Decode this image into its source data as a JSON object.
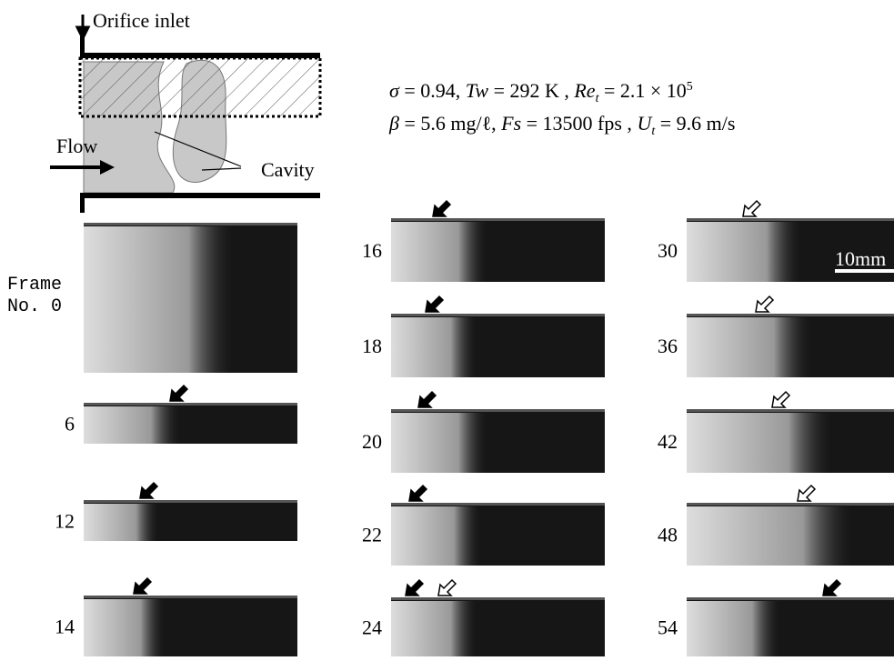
{
  "diagram": {
    "inlet_label": "Orifice inlet",
    "flow_label": "Flow",
    "cavity_label": "Cavity"
  },
  "parameters": [
    [
      {
        "text": "σ",
        "style": "italic"
      },
      {
        "text": " = 0.94,  ",
        "style": "plain"
      },
      {
        "text": "Tw",
        "style": "italic"
      },
      {
        "text": " = 292 K ,  ",
        "style": "plain"
      },
      {
        "text": "Re",
        "style": "italic"
      },
      {
        "text": "t",
        "style": "sub"
      },
      {
        "text": " = 2.1 × 10",
        "style": "plain"
      },
      {
        "text": "5",
        "style": "sup"
      }
    ],
    [
      {
        "text": "β",
        "style": "italic"
      },
      {
        "text": " = 5.6 mg/ℓ,  ",
        "style": "plain"
      },
      {
        "text": "Fs",
        "style": "italic"
      },
      {
        "text": " = 13500 fps ,  ",
        "style": "plain"
      },
      {
        "text": "U",
        "style": "italic"
      },
      {
        "text": "t",
        "style": "sub"
      },
      {
        "text": " = 9.6 m/s",
        "style": "plain"
      }
    ]
  ],
  "frame_caption": [
    "Frame",
    "No. 0"
  ],
  "frames": [
    "6",
    "12",
    "14",
    "16",
    "18",
    "20",
    "22",
    "24",
    "30",
    "36",
    "42",
    "48",
    "54"
  ],
  "scale_bar": "10mm"
}
